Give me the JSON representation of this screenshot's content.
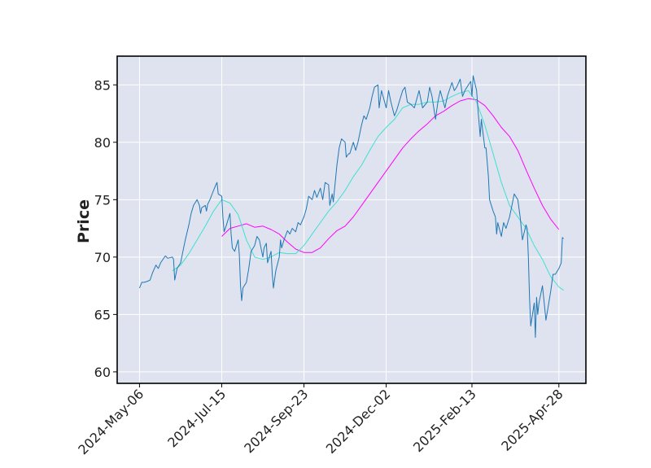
{
  "chart_data": {
    "type": "line",
    "title": "",
    "xlabel": "",
    "ylabel": "Price",
    "ylim": [
      59,
      87.5
    ],
    "y_ticks": [
      60,
      65,
      70,
      75,
      80,
      85
    ],
    "grid": true,
    "legend": "none",
    "x_ticks": [
      {
        "label": "2024-May-06",
        "date": "2024-05-06"
      },
      {
        "label": "2024-Jul-15",
        "date": "2024-07-15"
      },
      {
        "label": "2024-Sep-23",
        "date": "2024-09-23"
      },
      {
        "label": "2024-Dec-02",
        "date": "2024-12-02"
      },
      {
        "label": "2025-Feb-13",
        "date": "2025-02-13"
      },
      {
        "label": "2025-Apr-28",
        "date": "2025-04-28"
      }
    ],
    "xlim": [
      "2024-04-17",
      "2025-05-21"
    ],
    "colors": {
      "plot_background": "#dee3ef",
      "grid": "#ffffff",
      "frame": "#000000"
    },
    "series": [
      {
        "key": "price",
        "color": "#1f77b4",
        "points": [
          [
            "2024-05-06",
            67.3
          ],
          [
            "2024-05-08",
            67.8
          ],
          [
            "2024-05-10",
            67.8
          ],
          [
            "2024-05-13",
            67.9
          ],
          [
            "2024-05-15",
            68.0
          ],
          [
            "2024-05-17",
            68.6
          ],
          [
            "2024-05-20",
            69.3
          ],
          [
            "2024-05-22",
            69.0
          ],
          [
            "2024-05-24",
            69.5
          ],
          [
            "2024-05-28",
            70.1
          ],
          [
            "2024-05-30",
            69.9
          ],
          [
            "2024-06-03",
            70.0
          ],
          [
            "2024-06-04",
            69.8
          ],
          [
            "2024-06-05",
            68.0
          ],
          [
            "2024-06-07",
            69.0
          ],
          [
            "2024-06-10",
            69.5
          ],
          [
            "2024-06-12",
            70.5
          ],
          [
            "2024-06-14",
            71.5
          ],
          [
            "2024-06-17",
            72.8
          ],
          [
            "2024-06-19",
            73.8
          ],
          [
            "2024-06-21",
            74.5
          ],
          [
            "2024-06-24",
            75.0
          ],
          [
            "2024-06-26",
            74.5
          ],
          [
            "2024-06-27",
            73.8
          ],
          [
            "2024-06-28",
            74.3
          ],
          [
            "2024-07-01",
            74.5
          ],
          [
            "2024-07-02",
            74.0
          ],
          [
            "2024-07-03",
            74.6
          ],
          [
            "2024-07-05",
            75.0
          ],
          [
            "2024-07-08",
            75.8
          ],
          [
            "2024-07-10",
            76.3
          ],
          [
            "2024-07-11",
            76.5
          ],
          [
            "2024-07-12",
            75.5
          ],
          [
            "2024-07-15",
            75.3
          ],
          [
            "2024-07-16",
            73.5
          ],
          [
            "2024-07-17",
            72.2
          ],
          [
            "2024-07-19",
            72.8
          ],
          [
            "2024-07-22",
            73.8
          ],
          [
            "2024-07-23",
            72.0
          ],
          [
            "2024-07-24",
            70.8
          ],
          [
            "2024-07-26",
            70.5
          ],
          [
            "2024-07-29",
            71.5
          ],
          [
            "2024-07-30",
            70.2
          ],
          [
            "2024-07-31",
            67.5
          ],
          [
            "2024-08-01",
            66.2
          ],
          [
            "2024-08-02",
            67.3
          ],
          [
            "2024-08-05",
            67.8
          ],
          [
            "2024-08-07",
            69.0
          ],
          [
            "2024-08-09",
            70.5
          ],
          [
            "2024-08-12",
            71.0
          ],
          [
            "2024-08-14",
            71.8
          ],
          [
            "2024-08-16",
            71.5
          ],
          [
            "2024-08-19",
            70.0
          ],
          [
            "2024-08-20",
            70.8
          ],
          [
            "2024-08-22",
            71.2
          ],
          [
            "2024-08-23",
            69.5
          ],
          [
            "2024-08-26",
            70.5
          ],
          [
            "2024-08-27",
            68.5
          ],
          [
            "2024-08-28",
            67.3
          ],
          [
            "2024-08-30",
            68.8
          ],
          [
            "2024-09-02",
            70.0
          ],
          [
            "2024-09-03",
            71.5
          ],
          [
            "2024-09-04",
            70.8
          ],
          [
            "2024-09-06",
            71.5
          ],
          [
            "2024-09-09",
            72.3
          ],
          [
            "2024-09-11",
            72.0
          ],
          [
            "2024-09-13",
            72.5
          ],
          [
            "2024-09-16",
            72.2
          ],
          [
            "2024-09-18",
            73.0
          ],
          [
            "2024-09-20",
            72.8
          ],
          [
            "2024-09-23",
            73.5
          ],
          [
            "2024-09-25",
            74.2
          ],
          [
            "2024-09-27",
            75.3
          ],
          [
            "2024-09-30",
            75.0
          ],
          [
            "2024-10-02",
            75.8
          ],
          [
            "2024-10-04",
            75.2
          ],
          [
            "2024-10-07",
            76.0
          ],
          [
            "2024-10-09",
            75.0
          ],
          [
            "2024-10-11",
            76.5
          ],
          [
            "2024-10-14",
            76.3
          ],
          [
            "2024-10-15",
            74.5
          ],
          [
            "2024-10-17",
            75.5
          ],
          [
            "2024-10-18",
            74.8
          ],
          [
            "2024-10-21",
            78.0
          ],
          [
            "2024-10-23",
            79.5
          ],
          [
            "2024-10-25",
            80.3
          ],
          [
            "2024-10-28",
            80.0
          ],
          [
            "2024-10-29",
            78.7
          ],
          [
            "2024-10-31",
            79.0
          ],
          [
            "2024-11-01",
            79.0
          ],
          [
            "2024-11-04",
            80.0
          ],
          [
            "2024-11-06",
            79.3
          ],
          [
            "2024-11-08",
            80.0
          ],
          [
            "2024-11-11",
            81.5
          ],
          [
            "2024-11-13",
            82.3
          ],
          [
            "2024-11-15",
            82.0
          ],
          [
            "2024-11-18",
            83.0
          ],
          [
            "2024-11-20",
            84.0
          ],
          [
            "2024-11-22",
            84.8
          ],
          [
            "2024-11-25",
            85.0
          ],
          [
            "2024-11-26",
            83.0
          ],
          [
            "2024-11-28",
            84.5
          ],
          [
            "2024-12-02",
            83.0
          ],
          [
            "2024-12-04",
            84.5
          ],
          [
            "2024-12-06",
            83.5
          ],
          [
            "2024-12-09",
            82.3
          ],
          [
            "2024-12-11",
            82.8
          ],
          [
            "2024-12-13",
            83.5
          ],
          [
            "2024-12-16",
            84.5
          ],
          [
            "2024-12-18",
            84.8
          ],
          [
            "2024-12-20",
            83.5
          ],
          [
            "2024-12-23",
            83.3
          ],
          [
            "2024-12-26",
            83.0
          ],
          [
            "2024-12-30",
            84.5
          ],
          [
            "2025-01-02",
            83.0
          ],
          [
            "2025-01-06",
            83.5
          ],
          [
            "2025-01-08",
            84.8
          ],
          [
            "2025-01-10",
            84.0
          ],
          [
            "2025-01-13",
            82.0
          ],
          [
            "2025-01-15",
            83.5
          ],
          [
            "2025-01-17",
            84.5
          ],
          [
            "2025-01-21",
            83.0
          ],
          [
            "2025-01-23",
            84.0
          ],
          [
            "2025-01-27",
            85.2
          ],
          [
            "2025-01-29",
            84.5
          ],
          [
            "2025-01-31",
            84.8
          ],
          [
            "2025-02-03",
            85.5
          ],
          [
            "2025-02-05",
            84.0
          ],
          [
            "2025-02-07",
            84.5
          ],
          [
            "2025-02-10",
            85.0
          ],
          [
            "2025-02-12",
            85.3
          ],
          [
            "2025-02-13",
            84.0
          ],
          [
            "2025-02-14",
            85.8
          ],
          [
            "2025-02-17",
            84.5
          ],
          [
            "2025-02-18",
            83.0
          ],
          [
            "2025-02-20",
            80.5
          ],
          [
            "2025-02-21",
            82.0
          ],
          [
            "2025-02-24",
            79.5
          ],
          [
            "2025-02-25",
            79.5
          ],
          [
            "2025-02-27",
            77.0
          ],
          [
            "2025-02-28",
            75.0
          ],
          [
            "2025-03-03",
            74.0
          ],
          [
            "2025-03-05",
            73.5
          ],
          [
            "2025-03-06",
            72.0
          ],
          [
            "2025-03-07",
            73.0
          ],
          [
            "2025-03-10",
            71.8
          ],
          [
            "2025-03-12",
            73.0
          ],
          [
            "2025-03-14",
            72.5
          ],
          [
            "2025-03-17",
            73.5
          ],
          [
            "2025-03-19",
            74.5
          ],
          [
            "2025-03-21",
            75.5
          ],
          [
            "2025-03-24",
            75.0
          ],
          [
            "2025-03-26",
            73.5
          ],
          [
            "2025-03-28",
            71.5
          ],
          [
            "2025-03-31",
            72.8
          ],
          [
            "2025-04-01",
            72.5
          ],
          [
            "2025-04-02",
            70.0
          ],
          [
            "2025-04-03",
            66.5
          ],
          [
            "2025-04-04",
            64.0
          ],
          [
            "2025-04-07",
            66.0
          ],
          [
            "2025-04-08",
            63.0
          ],
          [
            "2025-04-09",
            66.5
          ],
          [
            "2025-04-10",
            65.0
          ],
          [
            "2025-04-11",
            66.0
          ],
          [
            "2025-04-14",
            67.5
          ],
          [
            "2025-04-16",
            65.5
          ],
          [
            "2025-04-17",
            64.5
          ],
          [
            "2025-04-21",
            67.0
          ],
          [
            "2025-04-23",
            68.5
          ],
          [
            "2025-04-25",
            68.5
          ],
          [
            "2025-04-28",
            69.0
          ],
          [
            "2025-04-30",
            69.5
          ],
          [
            "2025-05-01",
            71.7
          ],
          [
            "2025-05-02",
            71.6
          ]
        ]
      },
      {
        "key": "mav_short",
        "color": "#40e0d0",
        "points": [
          [
            "2024-06-03",
            68.8
          ],
          [
            "2024-06-10",
            69.3
          ],
          [
            "2024-06-17",
            70.3
          ],
          [
            "2024-06-24",
            71.5
          ],
          [
            "2024-07-01",
            72.7
          ],
          [
            "2024-07-08",
            74.0
          ],
          [
            "2024-07-15",
            75.0
          ],
          [
            "2024-07-22",
            74.7
          ],
          [
            "2024-07-29",
            73.7
          ],
          [
            "2024-08-05",
            71.5
          ],
          [
            "2024-08-12",
            70.0
          ],
          [
            "2024-08-19",
            69.8
          ],
          [
            "2024-08-26",
            70.0
          ],
          [
            "2024-09-02",
            70.4
          ],
          [
            "2024-09-09",
            70.3
          ],
          [
            "2024-09-16",
            70.3
          ],
          [
            "2024-09-23",
            71.0
          ],
          [
            "2024-09-30",
            72.0
          ],
          [
            "2024-10-07",
            73.0
          ],
          [
            "2024-10-14",
            74.0
          ],
          [
            "2024-10-21",
            74.8
          ],
          [
            "2024-10-28",
            75.8
          ],
          [
            "2024-11-04",
            77.0
          ],
          [
            "2024-11-11",
            78.0
          ],
          [
            "2024-11-18",
            79.3
          ],
          [
            "2024-11-25",
            80.5
          ],
          [
            "2024-12-02",
            81.3
          ],
          [
            "2024-12-09",
            82.0
          ],
          [
            "2024-12-16",
            83.0
          ],
          [
            "2024-12-23",
            83.3
          ],
          [
            "2024-12-30",
            83.3
          ],
          [
            "2025-01-06",
            83.5
          ],
          [
            "2025-01-13",
            83.5
          ],
          [
            "2025-01-20",
            83.6
          ],
          [
            "2025-01-27",
            84.0
          ],
          [
            "2025-02-03",
            84.3
          ],
          [
            "2025-02-10",
            84.5
          ],
          [
            "2025-02-17",
            83.5
          ],
          [
            "2025-02-24",
            81.5
          ],
          [
            "2025-03-03",
            79.0
          ],
          [
            "2025-03-10",
            76.5
          ],
          [
            "2025-03-17",
            74.5
          ],
          [
            "2025-03-24",
            73.5
          ],
          [
            "2025-03-31",
            72.5
          ],
          [
            "2025-04-07",
            71.0
          ],
          [
            "2025-04-14",
            69.8
          ],
          [
            "2025-04-21",
            68.3
          ],
          [
            "2025-04-28",
            67.4
          ],
          [
            "2025-05-02",
            67.1
          ]
        ]
      },
      {
        "key": "mav_long",
        "color": "#ff00ff",
        "points": [
          [
            "2024-07-15",
            71.8
          ],
          [
            "2024-07-22",
            72.5
          ],
          [
            "2024-07-29",
            72.7
          ],
          [
            "2024-08-05",
            72.9
          ],
          [
            "2024-08-12",
            72.6
          ],
          [
            "2024-08-19",
            72.7
          ],
          [
            "2024-08-26",
            72.4
          ],
          [
            "2024-09-02",
            72.0
          ],
          [
            "2024-09-09",
            71.3
          ],
          [
            "2024-09-16",
            70.7
          ],
          [
            "2024-09-23",
            70.4
          ],
          [
            "2024-09-30",
            70.4
          ],
          [
            "2024-10-07",
            70.8
          ],
          [
            "2024-10-14",
            71.6
          ],
          [
            "2024-10-21",
            72.3
          ],
          [
            "2024-10-28",
            72.7
          ],
          [
            "2024-11-04",
            73.5
          ],
          [
            "2024-11-11",
            74.5
          ],
          [
            "2024-11-18",
            75.5
          ],
          [
            "2024-11-25",
            76.5
          ],
          [
            "2024-12-02",
            77.5
          ],
          [
            "2024-12-09",
            78.5
          ],
          [
            "2024-12-16",
            79.5
          ],
          [
            "2024-12-23",
            80.3
          ],
          [
            "2024-12-30",
            81.0
          ],
          [
            "2025-01-06",
            81.6
          ],
          [
            "2025-01-13",
            82.3
          ],
          [
            "2025-01-20",
            82.7
          ],
          [
            "2025-01-27",
            83.2
          ],
          [
            "2025-02-03",
            83.6
          ],
          [
            "2025-02-10",
            83.8
          ],
          [
            "2025-02-17",
            83.7
          ],
          [
            "2025-02-24",
            83.2
          ],
          [
            "2025-03-03",
            82.3
          ],
          [
            "2025-03-10",
            81.3
          ],
          [
            "2025-03-17",
            80.5
          ],
          [
            "2025-03-24",
            79.3
          ],
          [
            "2025-03-31",
            77.6
          ],
          [
            "2025-04-07",
            76.0
          ],
          [
            "2025-04-14",
            74.5
          ],
          [
            "2025-04-21",
            73.3
          ],
          [
            "2025-04-28",
            72.4
          ]
        ]
      }
    ]
  }
}
